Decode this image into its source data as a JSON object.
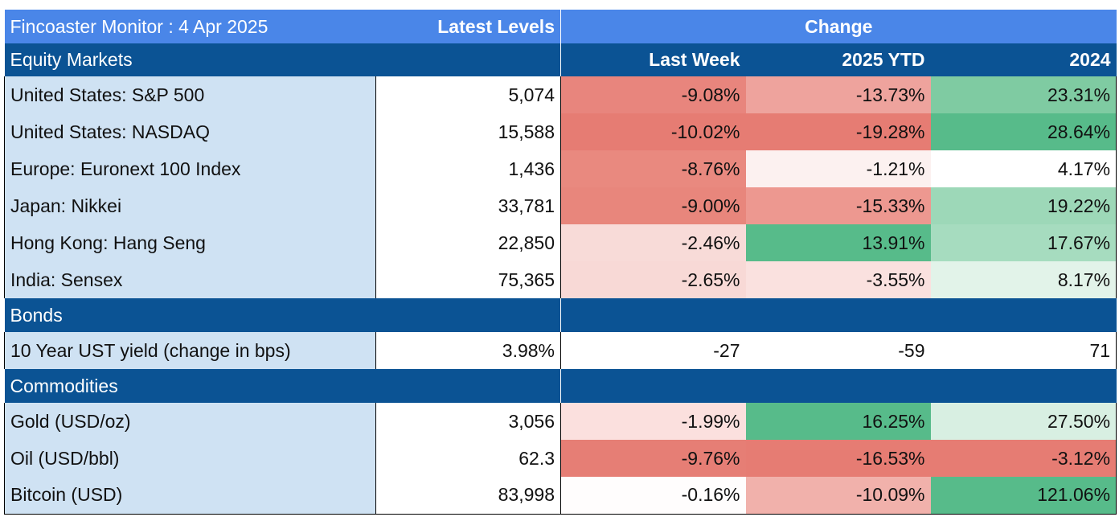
{
  "header": {
    "title": "Fincoaster Monitor : 4 Apr 2025",
    "latest_levels": "Latest Levels",
    "change": "Change",
    "section_equity": "Equity Markets",
    "last_week": "Last Week",
    "ytd": "2025 YTD",
    "year_2024": "2024"
  },
  "equity": [
    {
      "name": "United States: S&P 500",
      "level": "5,074",
      "last_week": "-9.08%",
      "ytd": "-13.73%",
      "y2024": "23.31%",
      "colors": {
        "last_week": "#e8857d",
        "ytd": "#eea39d",
        "y2024": "#7fcba2"
      }
    },
    {
      "name": "United States: NASDAQ",
      "level": "15,588",
      "last_week": "-10.02%",
      "ytd": "-19.28%",
      "y2024": "28.64%",
      "colors": {
        "last_week": "#e67c73",
        "ytd": "#e67c73",
        "y2024": "#57bb8a"
      }
    },
    {
      "name": "Europe: Euronext 100 Index",
      "level": "1,436",
      "last_week": "-8.76%",
      "ytd": "-1.21%",
      "y2024": "4.17%",
      "colors": {
        "last_week": "#e9897f",
        "ytd": "#fcf1f0",
        "y2024": "#ffffff"
      }
    },
    {
      "name": "Japan: Nikkei",
      "level": "33,781",
      "last_week": "-9.00%",
      "ytd": "-15.33%",
      "y2024": "19.22%",
      "colors": {
        "last_week": "#e8867c",
        "ytd": "#ed9890",
        "y2024": "#9dd8b8"
      }
    },
    {
      "name": "Hong Kong: Hang Seng",
      "level": "22,850",
      "last_week": "-2.46%",
      "ytd": "13.91%",
      "y2024": "17.67%",
      "colors": {
        "last_week": "#f8dbd8",
        "ytd": "#57bb8a",
        "y2024": "#a6dcbf"
      }
    },
    {
      "name": "India: Sensex",
      "level": "75,365",
      "last_week": "-2.65%",
      "ytd": "-3.55%",
      "y2024": "8.17%",
      "colors": {
        "last_week": "#f8d9d6",
        "ytd": "#fae1df",
        "y2024": "#e2f3e9"
      }
    }
  ],
  "bonds_section": "Bonds",
  "bonds": [
    {
      "name": "10 Year UST yield (change in bps)",
      "level": "3.98%",
      "last_week": "-27",
      "ytd": "-59",
      "y2024": "71",
      "colors": {
        "last_week": "#ffffff",
        "ytd": "#ffffff",
        "y2024": "#ffffff"
      }
    }
  ],
  "commodities_section": "Commodities",
  "commodities": [
    {
      "name": "Gold (USD/oz)",
      "level": "3,056",
      "last_week": "-1.99%",
      "ytd": "16.25%",
      "y2024": "27.50%",
      "colors": {
        "last_week": "#fbe0de",
        "ytd": "#57bb8a",
        "y2024": "#d8efe2"
      }
    },
    {
      "name": "Oil (USD/bbl)",
      "level": "62.3",
      "last_week": "-9.76%",
      "ytd": "-16.53%",
      "y2024": "-3.12%",
      "colors": {
        "last_week": "#e67e75",
        "ytd": "#e67c73",
        "y2024": "#e67c73"
      }
    },
    {
      "name": "Bitcoin (USD)",
      "level": "83,998",
      "last_week": "-0.16%",
      "ytd": "-10.09%",
      "y2024": "121.06%",
      "colors": {
        "last_week": "#fffdfd",
        "ytd": "#f1b1ab",
        "y2024": "#57bb8a"
      }
    }
  ]
}
